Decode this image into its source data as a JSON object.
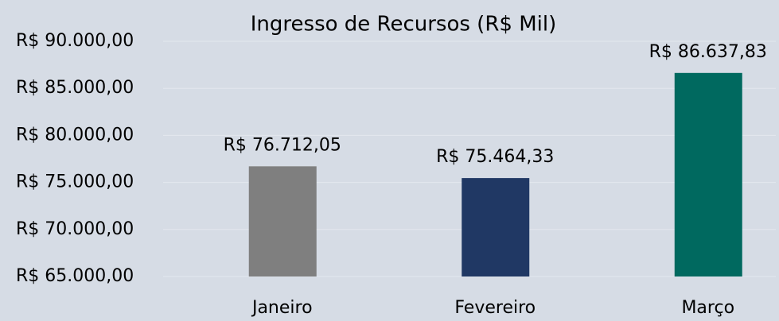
{
  "chart_data": {
    "type": "bar",
    "title": "Ingresso de Recursos (R$ Mil)",
    "categories": [
      "Janeiro",
      "Fevereiro",
      "Março"
    ],
    "values": [
      76712.05,
      75464.33,
      86637.83
    ],
    "value_labels": [
      "R$ 76.712,05",
      "R$ 75.464,33",
      "R$ 86.637,83"
    ],
    "colors": [
      "#7f7f7f",
      "#203864",
      "#00695f"
    ],
    "ylim": [
      65000,
      90000
    ],
    "yticks": [
      {
        "value": 65000,
        "label": "R$ 65.000,00"
      },
      {
        "value": 70000,
        "label": "R$ 70.000,00"
      },
      {
        "value": 75000,
        "label": "R$ 75.000,00"
      },
      {
        "value": 80000,
        "label": "R$ 80.000,00"
      },
      {
        "value": 85000,
        "label": "R$ 85.000,00"
      },
      {
        "value": 90000,
        "label": "R$ 90.000,00"
      }
    ],
    "grid": true
  }
}
